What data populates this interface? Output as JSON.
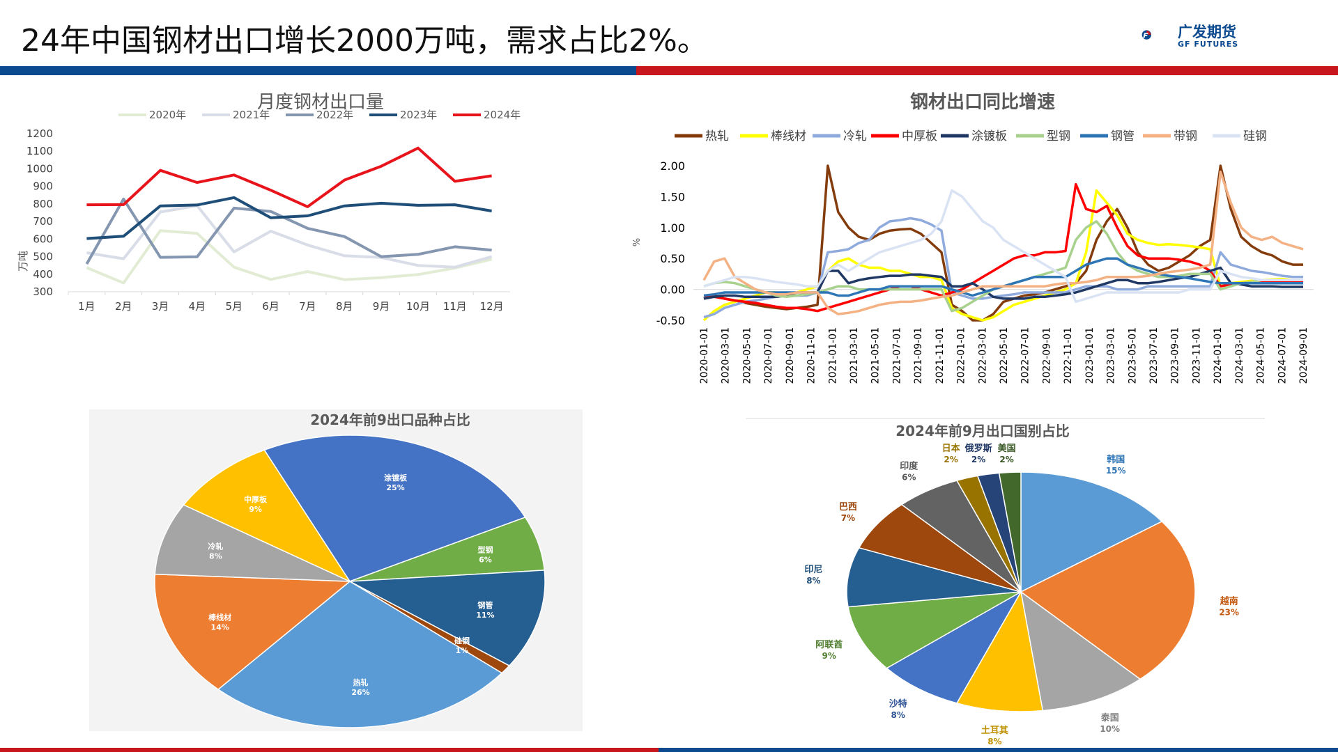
{
  "page": {
    "title": "24年中国钢材出口增长2000万吨，需求占比2%。",
    "logo_text": "广发期货",
    "logo_sub": "GF FUTURES"
  },
  "colors": {
    "blue_bar": "#0b4a8f",
    "red_bar": "#c8161d"
  },
  "chart_data": [
    {
      "type": "line",
      "title": "月度钢材出口量",
      "ylabel": "万吨",
      "xlabel": "",
      "categories": [
        "1月",
        "2月",
        "3月",
        "4月",
        "5月",
        "6月",
        "7月",
        "8月",
        "9月",
        "10月",
        "11月",
        "12月"
      ],
      "ylim": [
        300,
        1200
      ],
      "yticks": [
        "300",
        "400",
        "500",
        "600",
        "700",
        "800",
        "900",
        "1000",
        "1100",
        "1200"
      ],
      "legend_position": "top",
      "grid": false,
      "series": [
        {
          "name": "2020年",
          "color": "#e2ecd4",
          "values": [
            437,
            350,
            648,
            632,
            440,
            370,
            415,
            369,
            380,
            398,
            435,
            485
          ]
        },
        {
          "name": "2021年",
          "color": "#d9dde7",
          "values": [
            522,
            488,
            754,
            790,
            527,
            645,
            566,
            505,
            495,
            450,
            440,
            500
          ]
        },
        {
          "name": "2022年",
          "color": "#8496b0",
          "values": [
            458,
            828,
            496,
            499,
            776,
            757,
            661,
            614,
            500,
            513,
            556,
            537
          ]
        },
        {
          "name": "2023年",
          "color": "#1f4e79",
          "values": [
            603,
            616,
            789,
            794,
            836,
            721,
            732,
            789,
            804,
            792,
            795,
            760
          ]
        },
        {
          "name": "2024年",
          "color": "#e8141c",
          "values": [
            795,
            796,
            991,
            922,
            965,
            878,
            784,
            936,
            1015,
            1118,
            929,
            960
          ]
        }
      ]
    },
    {
      "type": "line",
      "title": "钢材出口同比增速",
      "ylabel": "%",
      "xlabel": "",
      "ylim": [
        -0.5,
        2.0
      ],
      "yticks": [
        "-0.50",
        "0.00",
        "0.50",
        "1.00",
        "1.50",
        "2.00"
      ],
      "x_labels": [
        "2020-01-01",
        "2020-03-01",
        "2020-05-01",
        "2020-07-01",
        "2020-09-01",
        "2020-11-01",
        "2021-01-01",
        "2021-03-01",
        "2021-05-01",
        "2021-07-01",
        "2021-09-01",
        "2021-11-01",
        "2022-01-01",
        "2022-03-01",
        "2022-05-01",
        "2022-07-01",
        "2022-09-01",
        "2022-11-01",
        "2023-01-01",
        "2023-03-01",
        "2023-05-01",
        "2023-07-01",
        "2023-09-01",
        "2023-11-01",
        "2024-01-01",
        "2024-03-01",
        "2024-05-01",
        "2024-07-01",
        "2024-09-01"
      ],
      "legend_position": "top",
      "grid": false,
      "series": [
        {
          "name": "热轧",
          "color": "#843c0c",
          "values": [
            -0.15,
            -0.1,
            -0.15,
            -0.18,
            -0.22,
            -0.25,
            -0.28,
            -0.3,
            -0.32,
            -0.3,
            -0.28,
            -0.25,
            2.0,
            1.25,
            1.0,
            0.85,
            0.8,
            0.9,
            0.95,
            0.97,
            0.98,
            0.9,
            0.75,
            0.6,
            -0.25,
            -0.35,
            -0.5,
            -0.5,
            -0.4,
            -0.2,
            -0.15,
            -0.1,
            -0.08,
            -0.05,
            0.0,
            0.05,
            0.1,
            0.3,
            0.8,
            1.1,
            1.3,
            1.0,
            0.6,
            0.4,
            0.3,
            0.35,
            0.45,
            0.55,
            0.7,
            0.8,
            2.0,
            1.3,
            0.85,
            0.7,
            0.6,
            0.55,
            0.45,
            0.4,
            0.4
          ]
        },
        {
          "name": "棒线材",
          "color": "#ffff00",
          "values": [
            -0.5,
            -0.35,
            -0.25,
            -0.2,
            -0.15,
            -0.1,
            -0.05,
            -0.05,
            -0.1,
            -0.05,
            0.0,
            0.05,
            0.3,
            0.45,
            0.5,
            0.4,
            0.35,
            0.35,
            0.3,
            0.3,
            0.25,
            0.2,
            0.2,
            0.15,
            -0.3,
            -0.4,
            -0.45,
            -0.5,
            -0.45,
            -0.35,
            -0.25,
            -0.2,
            -0.15,
            -0.1,
            -0.05,
            0.0,
            0.1,
            0.6,
            1.6,
            1.4,
            1.2,
            0.9,
            0.8,
            0.75,
            0.72,
            0.73,
            0.72,
            0.7,
            0.68,
            0.65,
            0.05,
            0.1,
            0.12,
            0.14,
            0.15,
            0.16,
            0.17,
            0.15,
            0.15
          ]
        },
        {
          "name": "冷轧",
          "color": "#8faadc",
          "values": [
            -0.45,
            -0.4,
            -0.3,
            -0.25,
            -0.2,
            -0.18,
            -0.15,
            -0.12,
            -0.1,
            -0.1,
            -0.1,
            -0.05,
            0.6,
            0.62,
            0.65,
            0.75,
            0.8,
            1.0,
            1.1,
            1.12,
            1.15,
            1.12,
            1.05,
            0.95,
            -0.05,
            -0.1,
            -0.15,
            -0.15,
            -0.12,
            -0.1,
            -0.08,
            -0.05,
            -0.05,
            -0.05,
            -0.05,
            -0.05,
            0.0,
            0.05,
            0.05,
            0.05,
            0.0,
            0.0,
            0.0,
            0.05,
            0.05,
            0.05,
            0.05,
            0.05,
            0.05,
            0.05,
            0.6,
            0.4,
            0.35,
            0.3,
            0.28,
            0.25,
            0.22,
            0.2,
            0.2
          ]
        },
        {
          "name": "中厚板",
          "color": "#ff0000",
          "values": [
            -0.1,
            -0.12,
            -0.15,
            -0.18,
            -0.2,
            -0.22,
            -0.25,
            -0.28,
            -0.3,
            -0.3,
            -0.32,
            -0.35,
            -0.3,
            -0.25,
            -0.2,
            -0.15,
            -0.1,
            -0.05,
            0.0,
            0.05,
            0.05,
            0.0,
            -0.05,
            -0.1,
            -0.05,
            0.0,
            0.1,
            0.2,
            0.3,
            0.4,
            0.5,
            0.55,
            0.55,
            0.6,
            0.6,
            0.62,
            1.7,
            1.3,
            1.25,
            1.35,
            1.0,
            0.7,
            0.55,
            0.5,
            0.5,
            0.5,
            0.48,
            0.45,
            0.4,
            0.3,
            0.05,
            0.08,
            0.1,
            0.12,
            0.12,
            0.13,
            0.13,
            0.12,
            0.12
          ]
        },
        {
          "name": "涂镀板",
          "color": "#1f3864",
          "values": [
            -0.15,
            -0.12,
            -0.1,
            -0.1,
            -0.12,
            -0.12,
            -0.12,
            -0.12,
            -0.1,
            -0.1,
            -0.08,
            -0.05,
            0.3,
            0.3,
            0.1,
            0.15,
            0.18,
            0.2,
            0.22,
            0.22,
            0.24,
            0.24,
            0.22,
            0.2,
            0.05,
            0.05,
            0.1,
            0.0,
            -0.12,
            -0.15,
            -0.15,
            -0.15,
            -0.12,
            -0.12,
            -0.1,
            -0.08,
            -0.05,
            0.0,
            0.05,
            0.1,
            0.15,
            0.15,
            0.1,
            0.1,
            0.12,
            0.15,
            0.18,
            0.2,
            0.25,
            0.3,
            0.35,
            0.1,
            0.08,
            0.05,
            0.05,
            0.05,
            0.04,
            0.04,
            0.04
          ]
        },
        {
          "name": "型钢",
          "color": "#a9d18e",
          "values": [
            0.05,
            0.1,
            0.12,
            0.1,
            0.05,
            0.0,
            -0.05,
            -0.1,
            -0.12,
            -0.1,
            -0.08,
            -0.05,
            0.0,
            0.05,
            0.05,
            0.0,
            0.0,
            0.0,
            0.0,
            0.0,
            0.0,
            0.0,
            0.0,
            0.0,
            -0.35,
            -0.3,
            -0.2,
            -0.1,
            0.0,
            0.05,
            0.1,
            0.15,
            0.2,
            0.25,
            0.3,
            0.35,
            0.8,
            1.0,
            1.1,
            0.9,
            0.6,
            0.4,
            0.3,
            0.25,
            0.2,
            0.2,
            0.22,
            0.25,
            0.25,
            0.25,
            0.0,
            0.05,
            0.1,
            0.12,
            0.15,
            0.15,
            0.15,
            0.15,
            0.15
          ]
        },
        {
          "name": "钢管",
          "color": "#2e75b6",
          "values": [
            -0.1,
            -0.08,
            -0.05,
            -0.05,
            -0.05,
            -0.05,
            -0.05,
            -0.05,
            -0.05,
            -0.05,
            -0.05,
            -0.05,
            -0.05,
            -0.1,
            -0.1,
            -0.05,
            0.0,
            0.0,
            0.05,
            0.05,
            0.05,
            0.05,
            0.05,
            0.05,
            0.0,
            -0.05,
            -0.1,
            -0.05,
            0.0,
            0.05,
            0.1,
            0.15,
            0.2,
            0.2,
            0.2,
            0.2,
            0.3,
            0.4,
            0.45,
            0.5,
            0.5,
            0.4,
            0.35,
            0.3,
            0.25,
            0.22,
            0.2,
            0.18,
            0.15,
            0.12,
            0.1,
            0.1,
            0.1,
            0.1,
            0.1,
            0.1,
            0.1,
            0.1,
            0.1
          ]
        },
        {
          "name": "带钢",
          "color": "#f4b183",
          "values": [
            0.15,
            0.45,
            0.5,
            0.2,
            0.1,
            0.0,
            -0.05,
            -0.08,
            -0.08,
            -0.05,
            -0.05,
            -0.05,
            -0.3,
            -0.4,
            -0.38,
            -0.35,
            -0.3,
            -0.25,
            -0.22,
            -0.2,
            -0.2,
            -0.18,
            -0.15,
            -0.12,
            -0.1,
            -0.05,
            0.0,
            0.05,
            0.05,
            0.05,
            0.05,
            0.05,
            0.05,
            0.05,
            0.08,
            0.1,
            0.1,
            0.12,
            0.15,
            0.2,
            0.2,
            0.2,
            0.2,
            0.22,
            0.25,
            0.28,
            0.3,
            0.32,
            0.35,
            0.4,
            1.9,
            1.4,
            1.0,
            0.85,
            0.8,
            0.85,
            0.75,
            0.7,
            0.65
          ]
        },
        {
          "name": "硅钢",
          "color": "#dae3f3",
          "values": [
            0.05,
            0.1,
            0.15,
            0.2,
            0.2,
            0.18,
            0.15,
            0.12,
            0.1,
            0.08,
            0.05,
            0.05,
            0.3,
            0.4,
            0.3,
            0.4,
            0.5,
            0.6,
            0.65,
            0.7,
            0.75,
            0.8,
            0.9,
            1.1,
            1.6,
            1.5,
            1.3,
            1.1,
            1.0,
            0.8,
            0.7,
            0.6,
            0.5,
            0.4,
            0.3,
            0.2,
            -0.2,
            -0.15,
            -0.1,
            -0.05,
            -0.05,
            -0.05,
            -0.05,
            -0.05,
            -0.05,
            -0.05,
            -0.05,
            0.0,
            0.0,
            0.0,
            0.3,
            0.25,
            0.2,
            0.18,
            0.15,
            0.15,
            0.15,
            0.15,
            0.15
          ]
        }
      ]
    },
    {
      "type": "pie",
      "title": "2024年前9出口品种占比",
      "slices": [
        {
          "name": "涂镀板",
          "pct": 25,
          "label": "25%",
          "color": "#4472c4"
        },
        {
          "name": "型钢",
          "pct": 6,
          "label": "6%",
          "color": "#70ad47"
        },
        {
          "name": "钢管",
          "pct": 11,
          "label": "11%",
          "color": "#255e91"
        },
        {
          "name": "硅钢",
          "pct": 1,
          "label": "1%",
          "color": "#9e480e"
        },
        {
          "name": "热轧",
          "pct": 26,
          "label": "26%",
          "color": "#5b9bd5"
        },
        {
          "name": "棒线材",
          "pct": 14,
          "label": "14%",
          "color": "#ed7d31"
        },
        {
          "name": "冷轧",
          "pct": 8,
          "label": "8%",
          "color": "#a5a5a5"
        },
        {
          "name": "中厚板",
          "pct": 9,
          "label": "9%",
          "color": "#ffc000"
        }
      ]
    },
    {
      "type": "pie",
      "title": "2024年前9月出口国别占比",
      "slices": [
        {
          "name": "韩国",
          "pct": 15,
          "label": "15%",
          "color": "#5b9bd5",
          "text_color": "#2e75b6"
        },
        {
          "name": "越南",
          "pct": 23,
          "label": "23%",
          "color": "#ed7d31",
          "text_color": "#c55a11"
        },
        {
          "name": "泰国",
          "pct": 10,
          "label": "10%",
          "color": "#a5a5a5",
          "text_color": "#7f7f7f"
        },
        {
          "name": "土耳其",
          "pct": 8,
          "label": "8%",
          "color": "#ffc000",
          "text_color": "#bf9000"
        },
        {
          "name": "沙特",
          "pct": 8,
          "label": "8%",
          "color": "#4472c4",
          "text_color": "#2f5597"
        },
        {
          "name": "阿联酋",
          "pct": 9,
          "label": "9%",
          "color": "#70ad47",
          "text_color": "#548235"
        },
        {
          "name": "印尼",
          "pct": 8,
          "label": "8%",
          "color": "#255e91",
          "text_color": "#1f4e79"
        },
        {
          "name": "巴西",
          "pct": 7,
          "label": "7%",
          "color": "#9e480e",
          "text_color": "#9e480e"
        },
        {
          "name": "印度",
          "pct": 6,
          "label": "6%",
          "color": "#636363",
          "text_color": "#595959"
        },
        {
          "name": "日本",
          "pct": 2,
          "label": "2%",
          "color": "#997300",
          "text_color": "#997300"
        },
        {
          "name": "俄罗斯",
          "pct": 2,
          "label": "2%",
          "color": "#264478",
          "text_color": "#1f3864"
        },
        {
          "name": "美国",
          "pct": 2,
          "label": "2%",
          "color": "#43682b",
          "text_color": "#375623"
        }
      ]
    }
  ]
}
